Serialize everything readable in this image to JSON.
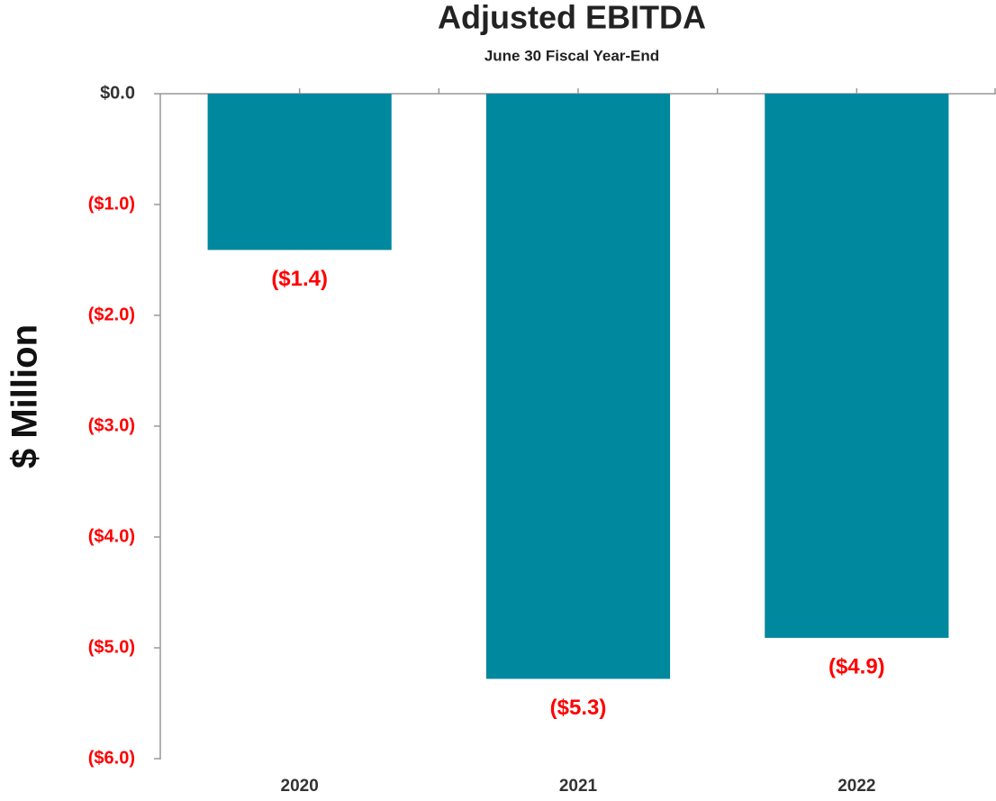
{
  "chart_data": {
    "type": "bar",
    "title": "Adjusted EBITDA",
    "subtitle": "June 30 Fiscal Year-End",
    "y_label": "$ Million",
    "categories": [
      "2020",
      "2021",
      "2022"
    ],
    "values": [
      -1.41,
      -5.28,
      -4.91
    ],
    "value_labels": [
      "($1.4)",
      "($5.3)",
      "($4.9)"
    ],
    "color": "#00889e",
    "negative_label_color": "#ff0000",
    "ylim": [
      -6,
      0
    ],
    "yticks": [
      {
        "value": 0,
        "label": "$0.0"
      },
      {
        "value": -1,
        "label": "($1.0)"
      },
      {
        "value": -2,
        "label": "($2.0)"
      },
      {
        "value": -3,
        "label": "($3.0)"
      },
      {
        "value": -4,
        "label": "($4.0)"
      },
      {
        "value": -5,
        "label": "($5.0)"
      },
      {
        "value": -6,
        "label": "($6.0)"
      }
    ],
    "grid": false
  }
}
